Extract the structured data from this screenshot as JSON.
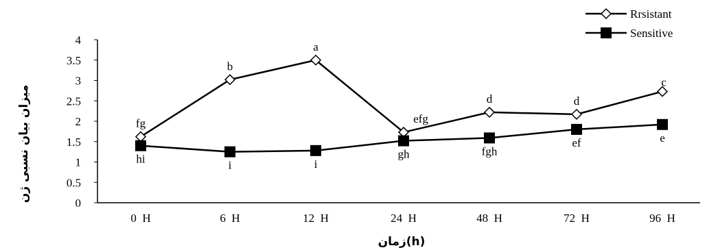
{
  "chart_data": {
    "type": "line",
    "categories": [
      "0  H",
      "6  H",
      "12  H",
      "24  H",
      "48  H",
      "72  H",
      "96  H"
    ],
    "xlabel": "زمان(h)",
    "ylabel": "میزان بیان نسبی ژن",
    "ylim": [
      0,
      4
    ],
    "yticks": [
      "0",
      "0.5",
      "1",
      "1.5",
      "2",
      "2.5",
      "3",
      "3.5",
      "4"
    ],
    "grid": false,
    "legend_position": "top-right",
    "series": [
      {
        "name": "Rrsistant",
        "marker": "open-diamond",
        "values": [
          1.62,
          3.02,
          3.5,
          1.73,
          2.22,
          2.17,
          2.73
        ],
        "labels": [
          "fg",
          "b",
          "a",
          "efg",
          "d",
          "d",
          "c"
        ]
      },
      {
        "name": "Sensitive",
        "marker": "filled-square",
        "values": [
          1.4,
          1.25,
          1.28,
          1.52,
          1.59,
          1.8,
          1.92
        ],
        "labels": [
          "hi",
          "i",
          "i",
          "gh",
          "fgh",
          "ef",
          "e"
        ]
      }
    ]
  }
}
